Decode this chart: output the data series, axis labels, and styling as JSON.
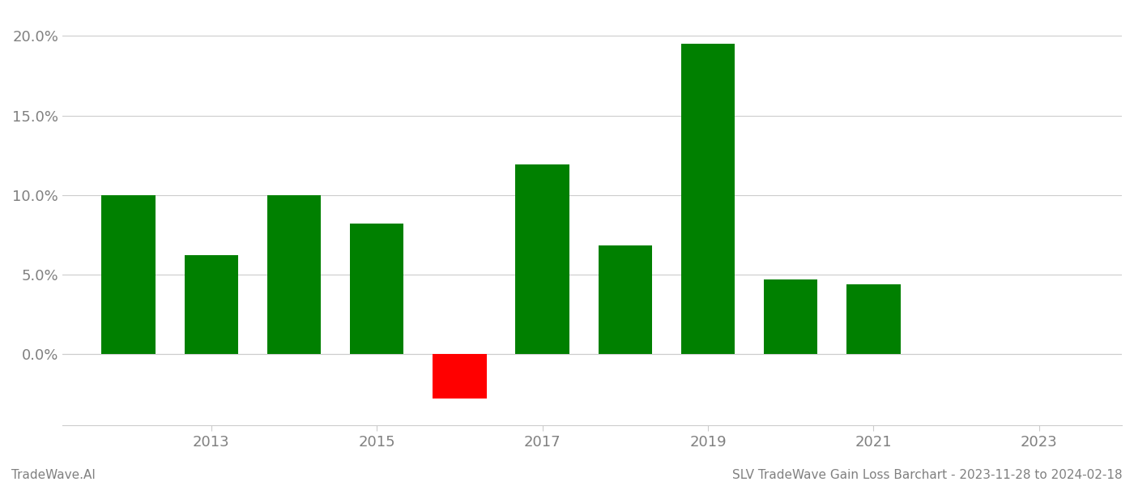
{
  "years": [
    2012,
    2013,
    2014,
    2015,
    2016,
    2017,
    2018,
    2019,
    2020,
    2021
  ],
  "values": [
    10.0,
    6.2,
    10.0,
    8.2,
    -2.8,
    11.9,
    6.8,
    19.5,
    4.7,
    4.4
  ],
  "colors": [
    "#008000",
    "#008000",
    "#008000",
    "#008000",
    "#ff0000",
    "#008000",
    "#008000",
    "#008000",
    "#008000",
    "#008000"
  ],
  "ylim_min": -4.5,
  "ylim_max": 21.5,
  "yticks": [
    0.0,
    5.0,
    10.0,
    15.0,
    20.0
  ],
  "xtick_labels": [
    "2013",
    "2015",
    "2017",
    "2019",
    "2021",
    "2023"
  ],
  "xtick_positions": [
    2013,
    2015,
    2017,
    2019,
    2021,
    2023
  ],
  "footer_left": "TradeWave.AI",
  "footer_right": "SLV TradeWave Gain Loss Barchart - 2023-11-28 to 2024-02-18",
  "bar_width": 0.65,
  "background_color": "#ffffff",
  "grid_color": "#cccccc",
  "text_color": "#808080",
  "footer_color_left": "#808080",
  "footer_color_right": "#808080",
  "xlim_min": 2011.2,
  "xlim_max": 2024.0
}
